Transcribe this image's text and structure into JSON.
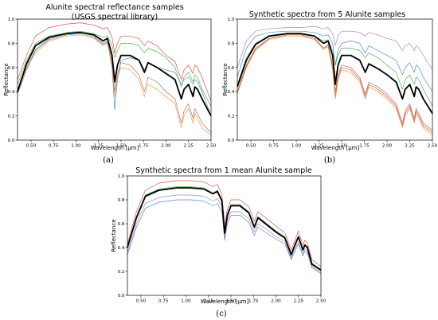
{
  "chart_data": [
    {
      "type": "line",
      "caption": "(a)",
      "title": "Alunite spectral reflectance samples",
      "subtitle": "(USGS spectral library)",
      "xlabel": "Wavelength [μm]",
      "ylabel": "Reflectance",
      "xlim": [
        0.35,
        2.5
      ],
      "ylim": [
        0.0,
        1.0
      ],
      "xticks": [
        "0.50",
        "0.75",
        "1.00",
        "1.25",
        "1.50",
        "1.75",
        "2.00",
        "2.25",
        "2.50"
      ],
      "yticks": [
        "0.0",
        "0.2",
        "0.4",
        "0.6",
        "0.8",
        "1.0"
      ],
      "grid": false,
      "x": [
        0.35,
        0.45,
        0.55,
        0.7,
        0.9,
        1.05,
        1.2,
        1.3,
        1.35,
        1.4,
        1.43,
        1.46,
        1.5,
        1.6,
        1.7,
        1.76,
        1.8,
        1.9,
        2.0,
        2.1,
        2.17,
        2.2,
        2.25,
        2.3,
        2.32,
        2.35,
        2.4,
        2.5
      ],
      "series": [
        {
          "color": "#d62728",
          "values": [
            0.5,
            0.7,
            0.86,
            0.93,
            0.96,
            0.97,
            0.95,
            0.92,
            0.93,
            0.85,
            0.72,
            0.8,
            0.86,
            0.86,
            0.84,
            0.78,
            0.82,
            0.78,
            0.7,
            0.65,
            0.5,
            0.58,
            0.62,
            0.55,
            0.62,
            0.6,
            0.52,
            0.32
          ]
        },
        {
          "color": "#2ca02c",
          "values": [
            0.46,
            0.66,
            0.8,
            0.86,
            0.89,
            0.9,
            0.88,
            0.85,
            0.86,
            0.78,
            0.68,
            0.74,
            0.8,
            0.8,
            0.78,
            0.72,
            0.76,
            0.73,
            0.68,
            0.6,
            0.44,
            0.52,
            0.56,
            0.48,
            0.54,
            0.52,
            0.42,
            0.28
          ]
        },
        {
          "color": "#8c564b",
          "values": [
            0.4,
            0.6,
            0.75,
            0.84,
            0.88,
            0.89,
            0.86,
            0.8,
            0.82,
            0.65,
            0.4,
            0.55,
            0.64,
            0.62,
            0.54,
            0.4,
            0.52,
            0.48,
            0.4,
            0.34,
            0.14,
            0.24,
            0.3,
            0.18,
            0.26,
            0.22,
            0.14,
            0.06
          ]
        },
        {
          "color": "#1f77b4",
          "values": [
            0.38,
            0.58,
            0.74,
            0.83,
            0.87,
            0.88,
            0.85,
            0.79,
            0.81,
            0.6,
            0.25,
            0.5,
            0.66,
            0.68,
            0.66,
            0.58,
            0.64,
            0.6,
            0.58,
            0.56,
            0.46,
            0.5,
            0.52,
            0.46,
            0.5,
            0.48,
            0.4,
            0.2
          ]
        },
        {
          "color": "#ff7f0e",
          "values": [
            0.38,
            0.6,
            0.72,
            0.82,
            0.86,
            0.87,
            0.84,
            0.78,
            0.8,
            0.62,
            0.36,
            0.52,
            0.6,
            0.58,
            0.5,
            0.36,
            0.46,
            0.42,
            0.36,
            0.3,
            0.1,
            0.2,
            0.26,
            0.14,
            0.22,
            0.18,
            0.1,
            0.04
          ]
        },
        {
          "color": "#000000",
          "bold": true,
          "values": [
            0.4,
            0.63,
            0.78,
            0.85,
            0.88,
            0.89,
            0.87,
            0.82,
            0.84,
            0.7,
            0.48,
            0.62,
            0.7,
            0.7,
            0.66,
            0.56,
            0.64,
            0.6,
            0.55,
            0.5,
            0.34,
            0.42,
            0.46,
            0.36,
            0.44,
            0.42,
            0.34,
            0.2
          ]
        }
      ]
    },
    {
      "type": "line",
      "caption": "(b)",
      "title": "Synthetic spectra from 5 Alunite samples",
      "xlabel": "Wavelength [μm]",
      "ylabel": "Reflectance",
      "xlim": [
        0.35,
        2.5
      ],
      "ylim": [
        0.0,
        1.0
      ],
      "xticks": [
        "0.50",
        "0.75",
        "1.00",
        "1.25",
        "1.50",
        "1.75",
        "2.00",
        "2.25",
        "2.50"
      ],
      "yticks": [
        "0.0",
        "0.2",
        "0.4",
        "0.6",
        "0.8",
        "1.0"
      ],
      "grid": false,
      "x": [
        0.35,
        0.45,
        0.55,
        0.7,
        0.9,
        1.05,
        1.2,
        1.3,
        1.35,
        1.4,
        1.43,
        1.46,
        1.5,
        1.6,
        1.7,
        1.76,
        1.8,
        1.9,
        2.0,
        2.1,
        2.17,
        2.2,
        2.25,
        2.3,
        2.32,
        2.35,
        2.4,
        2.5
      ],
      "series": [
        {
          "color": "#9467bd",
          "values": [
            0.6,
            0.82,
            0.9,
            0.92,
            0.93,
            0.93,
            0.94,
            0.92,
            0.93,
            0.88,
            0.78,
            0.86,
            0.9,
            0.9,
            0.89,
            0.86,
            0.89,
            0.87,
            0.84,
            0.82,
            0.74,
            0.78,
            0.8,
            0.74,
            0.78,
            0.76,
            0.7,
            0.58
          ]
        },
        {
          "color": "#1f77b4",
          "values": [
            0.52,
            0.76,
            0.86,
            0.89,
            0.9,
            0.9,
            0.89,
            0.86,
            0.87,
            0.8,
            0.62,
            0.74,
            0.8,
            0.82,
            0.8,
            0.72,
            0.78,
            0.74,
            0.7,
            0.66,
            0.54,
            0.6,
            0.64,
            0.56,
            0.62,
            0.6,
            0.52,
            0.4
          ]
        },
        {
          "color": "#2ca02c",
          "values": [
            0.46,
            0.68,
            0.8,
            0.86,
            0.88,
            0.88,
            0.86,
            0.82,
            0.83,
            0.74,
            0.62,
            0.7,
            0.76,
            0.76,
            0.74,
            0.68,
            0.72,
            0.68,
            0.62,
            0.56,
            0.42,
            0.5,
            0.54,
            0.46,
            0.52,
            0.5,
            0.42,
            0.28
          ]
        },
        {
          "color": "#d62728",
          "values": [
            0.4,
            0.62,
            0.76,
            0.84,
            0.87,
            0.87,
            0.84,
            0.76,
            0.78,
            0.6,
            0.36,
            0.52,
            0.6,
            0.58,
            0.5,
            0.36,
            0.46,
            0.42,
            0.36,
            0.28,
            0.12,
            0.22,
            0.28,
            0.16,
            0.24,
            0.2,
            0.12,
            0.06
          ]
        },
        {
          "color": "#ff7f0e",
          "values": [
            0.38,
            0.6,
            0.74,
            0.83,
            0.86,
            0.86,
            0.83,
            0.75,
            0.77,
            0.58,
            0.34,
            0.5,
            0.58,
            0.56,
            0.48,
            0.34,
            0.44,
            0.4,
            0.34,
            0.26,
            0.1,
            0.2,
            0.26,
            0.14,
            0.22,
            0.18,
            0.1,
            0.04
          ]
        },
        {
          "color": "#8c564b",
          "values": [
            0.4,
            0.61,
            0.75,
            0.84,
            0.87,
            0.87,
            0.84,
            0.76,
            0.79,
            0.62,
            0.4,
            0.54,
            0.62,
            0.6,
            0.52,
            0.38,
            0.48,
            0.44,
            0.38,
            0.3,
            0.14,
            0.24,
            0.3,
            0.18,
            0.26,
            0.22,
            0.14,
            0.08
          ]
        },
        {
          "color": "#000000",
          "bold": true,
          "values": [
            0.44,
            0.66,
            0.79,
            0.86,
            0.88,
            0.88,
            0.86,
            0.8,
            0.82,
            0.7,
            0.46,
            0.62,
            0.7,
            0.7,
            0.66,
            0.56,
            0.63,
            0.59,
            0.54,
            0.48,
            0.34,
            0.42,
            0.46,
            0.36,
            0.44,
            0.42,
            0.34,
            0.22
          ]
        }
      ]
    },
    {
      "type": "line",
      "caption": "(c)",
      "title": "Synthetic spectra from 1 mean Alunite sample",
      "xlabel": "Wavelength [μm]",
      "ylabel": "Reflectance",
      "xlim": [
        0.35,
        2.5
      ],
      "ylim": [
        0.0,
        1.0
      ],
      "xticks": [
        "0.50",
        "0.75",
        "1.00",
        "1.25",
        "1.50",
        "1.75",
        "2.00",
        "2.25",
        "2.50"
      ],
      "yticks": [
        "0.0",
        "0.2",
        "0.4",
        "0.6",
        "0.8",
        "1.0"
      ],
      "grid": false,
      "x": [
        0.35,
        0.45,
        0.55,
        0.7,
        0.9,
        1.05,
        1.2,
        1.3,
        1.35,
        1.4,
        1.43,
        1.46,
        1.5,
        1.6,
        1.7,
        1.76,
        1.8,
        1.9,
        2.0,
        2.1,
        2.17,
        2.2,
        2.25,
        2.3,
        2.32,
        2.35,
        2.4,
        2.5
      ],
      "series": [
        {
          "color": "#d62728",
          "values": [
            0.43,
            0.7,
            0.88,
            0.94,
            0.96,
            0.96,
            0.95,
            0.91,
            0.93,
            0.84,
            0.58,
            0.72,
            0.8,
            0.8,
            0.74,
            0.62,
            0.7,
            0.64,
            0.58,
            0.52,
            0.38,
            0.44,
            0.54,
            0.42,
            0.46,
            0.44,
            0.3,
            0.24
          ]
        },
        {
          "color": "#2ca02c",
          "values": [
            0.41,
            0.66,
            0.84,
            0.89,
            0.91,
            0.91,
            0.9,
            0.86,
            0.88,
            0.8,
            0.53,
            0.68,
            0.76,
            0.76,
            0.7,
            0.58,
            0.66,
            0.6,
            0.54,
            0.49,
            0.35,
            0.41,
            0.5,
            0.39,
            0.43,
            0.41,
            0.27,
            0.22
          ]
        },
        {
          "color": "#ff7f0e",
          "values": [
            0.4,
            0.65,
            0.83,
            0.88,
            0.9,
            0.9,
            0.89,
            0.85,
            0.87,
            0.79,
            0.52,
            0.67,
            0.75,
            0.75,
            0.69,
            0.57,
            0.65,
            0.59,
            0.53,
            0.48,
            0.34,
            0.4,
            0.49,
            0.38,
            0.42,
            0.4,
            0.26,
            0.21
          ]
        },
        {
          "color": "#9467bd",
          "values": [
            0.36,
            0.6,
            0.77,
            0.82,
            0.84,
            0.84,
            0.83,
            0.79,
            0.81,
            0.74,
            0.48,
            0.63,
            0.7,
            0.7,
            0.64,
            0.53,
            0.6,
            0.55,
            0.49,
            0.45,
            0.31,
            0.37,
            0.45,
            0.35,
            0.39,
            0.37,
            0.24,
            0.19
          ]
        },
        {
          "color": "#1f77b4",
          "values": [
            0.34,
            0.57,
            0.73,
            0.78,
            0.8,
            0.8,
            0.79,
            0.75,
            0.77,
            0.7,
            0.46,
            0.6,
            0.67,
            0.67,
            0.61,
            0.5,
            0.57,
            0.52,
            0.47,
            0.43,
            0.3,
            0.35,
            0.43,
            0.33,
            0.37,
            0.35,
            0.23,
            0.18
          ]
        },
        {
          "color": "#000000",
          "bold": true,
          "values": [
            0.4,
            0.65,
            0.83,
            0.88,
            0.9,
            0.9,
            0.89,
            0.85,
            0.87,
            0.79,
            0.52,
            0.67,
            0.75,
            0.75,
            0.69,
            0.57,
            0.65,
            0.59,
            0.53,
            0.48,
            0.34,
            0.4,
            0.49,
            0.38,
            0.42,
            0.4,
            0.26,
            0.21
          ]
        }
      ]
    }
  ]
}
